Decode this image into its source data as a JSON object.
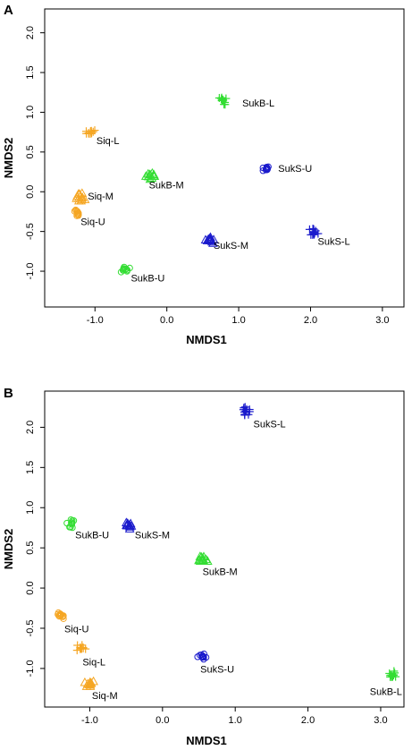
{
  "chart_data": [
    {
      "type": "scatter",
      "panel": "A",
      "xlabel": "NMDS1",
      "ylabel": "NMDS2",
      "xlim": [
        -1.7,
        3.3
      ],
      "ylim": [
        -1.45,
        2.3
      ],
      "xticks": [
        "-1.0",
        "0.0",
        "1.0",
        "2.0",
        "3.0"
      ],
      "xtick_values": [
        -1.0,
        0.0,
        1.0,
        2.0,
        3.0
      ],
      "yticks": [
        "-1.0",
        "-0.5",
        "0.0",
        "0.5",
        "1.0",
        "1.5",
        "2.0"
      ],
      "ytick_values": [
        -1.0,
        -0.5,
        0.0,
        0.5,
        1.0,
        1.5,
        2.0
      ],
      "grid": false,
      "groups": [
        {
          "label": "SukB-L",
          "x": 0.78,
          "y": 1.14,
          "color": "#33dd33",
          "marker": "plus",
          "label_x": 1.05,
          "label_y": 1.07
        },
        {
          "label": "Siq-L",
          "x": -1.06,
          "y": 0.75,
          "color": "#f5a623",
          "marker": "plus",
          "label_x": -0.98,
          "label_y": 0.6
        },
        {
          "label": "SukS-U",
          "x": 1.4,
          "y": 0.29,
          "color": "#1a1acc",
          "marker": "circle",
          "label_x": 1.55,
          "label_y": 0.25
        },
        {
          "label": "SukB-M",
          "x": -0.22,
          "y": 0.2,
          "color": "#33dd33",
          "marker": "triangle",
          "label_x": -0.25,
          "label_y": 0.04
        },
        {
          "label": "Siq-M",
          "x": -1.2,
          "y": -0.07,
          "color": "#f5a623",
          "marker": "triangle",
          "label_x": -1.1,
          "label_y": -0.1
        },
        {
          "label": "Siq-U",
          "x": -1.23,
          "y": -0.27,
          "color": "#f5a623",
          "marker": "circle",
          "label_x": -1.2,
          "label_y": -0.42
        },
        {
          "label": "SukS-M",
          "x": 0.6,
          "y": -0.61,
          "color": "#1a1acc",
          "marker": "triangle",
          "label_x": 0.65,
          "label_y": -0.72
        },
        {
          "label": "SukS-L",
          "x": 2.05,
          "y": -0.5,
          "color": "#1a1acc",
          "marker": "plus",
          "label_x": 2.1,
          "label_y": -0.67
        },
        {
          "label": "SukB-U",
          "x": -0.58,
          "y": -0.98,
          "color": "#33dd33",
          "marker": "circle",
          "label_x": -0.5,
          "label_y": -1.13
        }
      ]
    },
    {
      "type": "scatter",
      "panel": "B",
      "xlabel": "NMDS1",
      "ylabel": "NMDS2",
      "xlim": [
        -1.62,
        3.32
      ],
      "ylim": [
        -1.48,
        2.45
      ],
      "xticks": [
        "-1.0",
        "0.0",
        "1.0",
        "2.0",
        "3.0"
      ],
      "xtick_values": [
        -1.0,
        0.0,
        1.0,
        2.0,
        3.0
      ],
      "yticks": [
        "-1.0",
        "-0.5",
        "0.0",
        "0.5",
        "1.0",
        "1.5",
        "2.0"
      ],
      "ytick_values": [
        -1.0,
        -0.5,
        0.0,
        0.5,
        1.0,
        1.5,
        2.0
      ],
      "grid": false,
      "groups": [
        {
          "label": "SukS-L",
          "x": 1.15,
          "y": 2.2,
          "color": "#1a1acc",
          "marker": "plus",
          "label_x": 1.25,
          "label_y": 2.0
        },
        {
          "label": "SukB-U",
          "x": -1.25,
          "y": 0.8,
          "color": "#33dd33",
          "marker": "circle",
          "label_x": -1.2,
          "label_y": 0.62
        },
        {
          "label": "SukS-M",
          "x": -0.45,
          "y": 0.78,
          "color": "#1a1acc",
          "marker": "triangle",
          "label_x": -0.38,
          "label_y": 0.62
        },
        {
          "label": "SukB-M",
          "x": 0.55,
          "y": 0.35,
          "color": "#33dd33",
          "marker": "triangle",
          "label_x": 0.55,
          "label_y": 0.16
        },
        {
          "label": "Siq-U",
          "x": -1.42,
          "y": -0.35,
          "color": "#f5a623",
          "marker": "circle",
          "label_x": -1.35,
          "label_y": -0.55
        },
        {
          "label": "Siq-L",
          "x": -1.12,
          "y": -0.75,
          "color": "#f5a623",
          "marker": "plus",
          "label_x": -1.1,
          "label_y": -0.96
        },
        {
          "label": "SukS-U",
          "x": 0.55,
          "y": -0.85,
          "color": "#1a1acc",
          "marker": "circle",
          "label_x": 0.52,
          "label_y": -1.05
        },
        {
          "label": "Siq-M",
          "x": -1.0,
          "y": -1.18,
          "color": "#f5a623",
          "marker": "triangle",
          "label_x": -0.97,
          "label_y": -1.38
        },
        {
          "label": "SukB-L",
          "x": 3.18,
          "y": -1.08,
          "color": "#33dd33",
          "marker": "plus",
          "label_x": 2.85,
          "label_y": -1.33
        }
      ]
    }
  ]
}
